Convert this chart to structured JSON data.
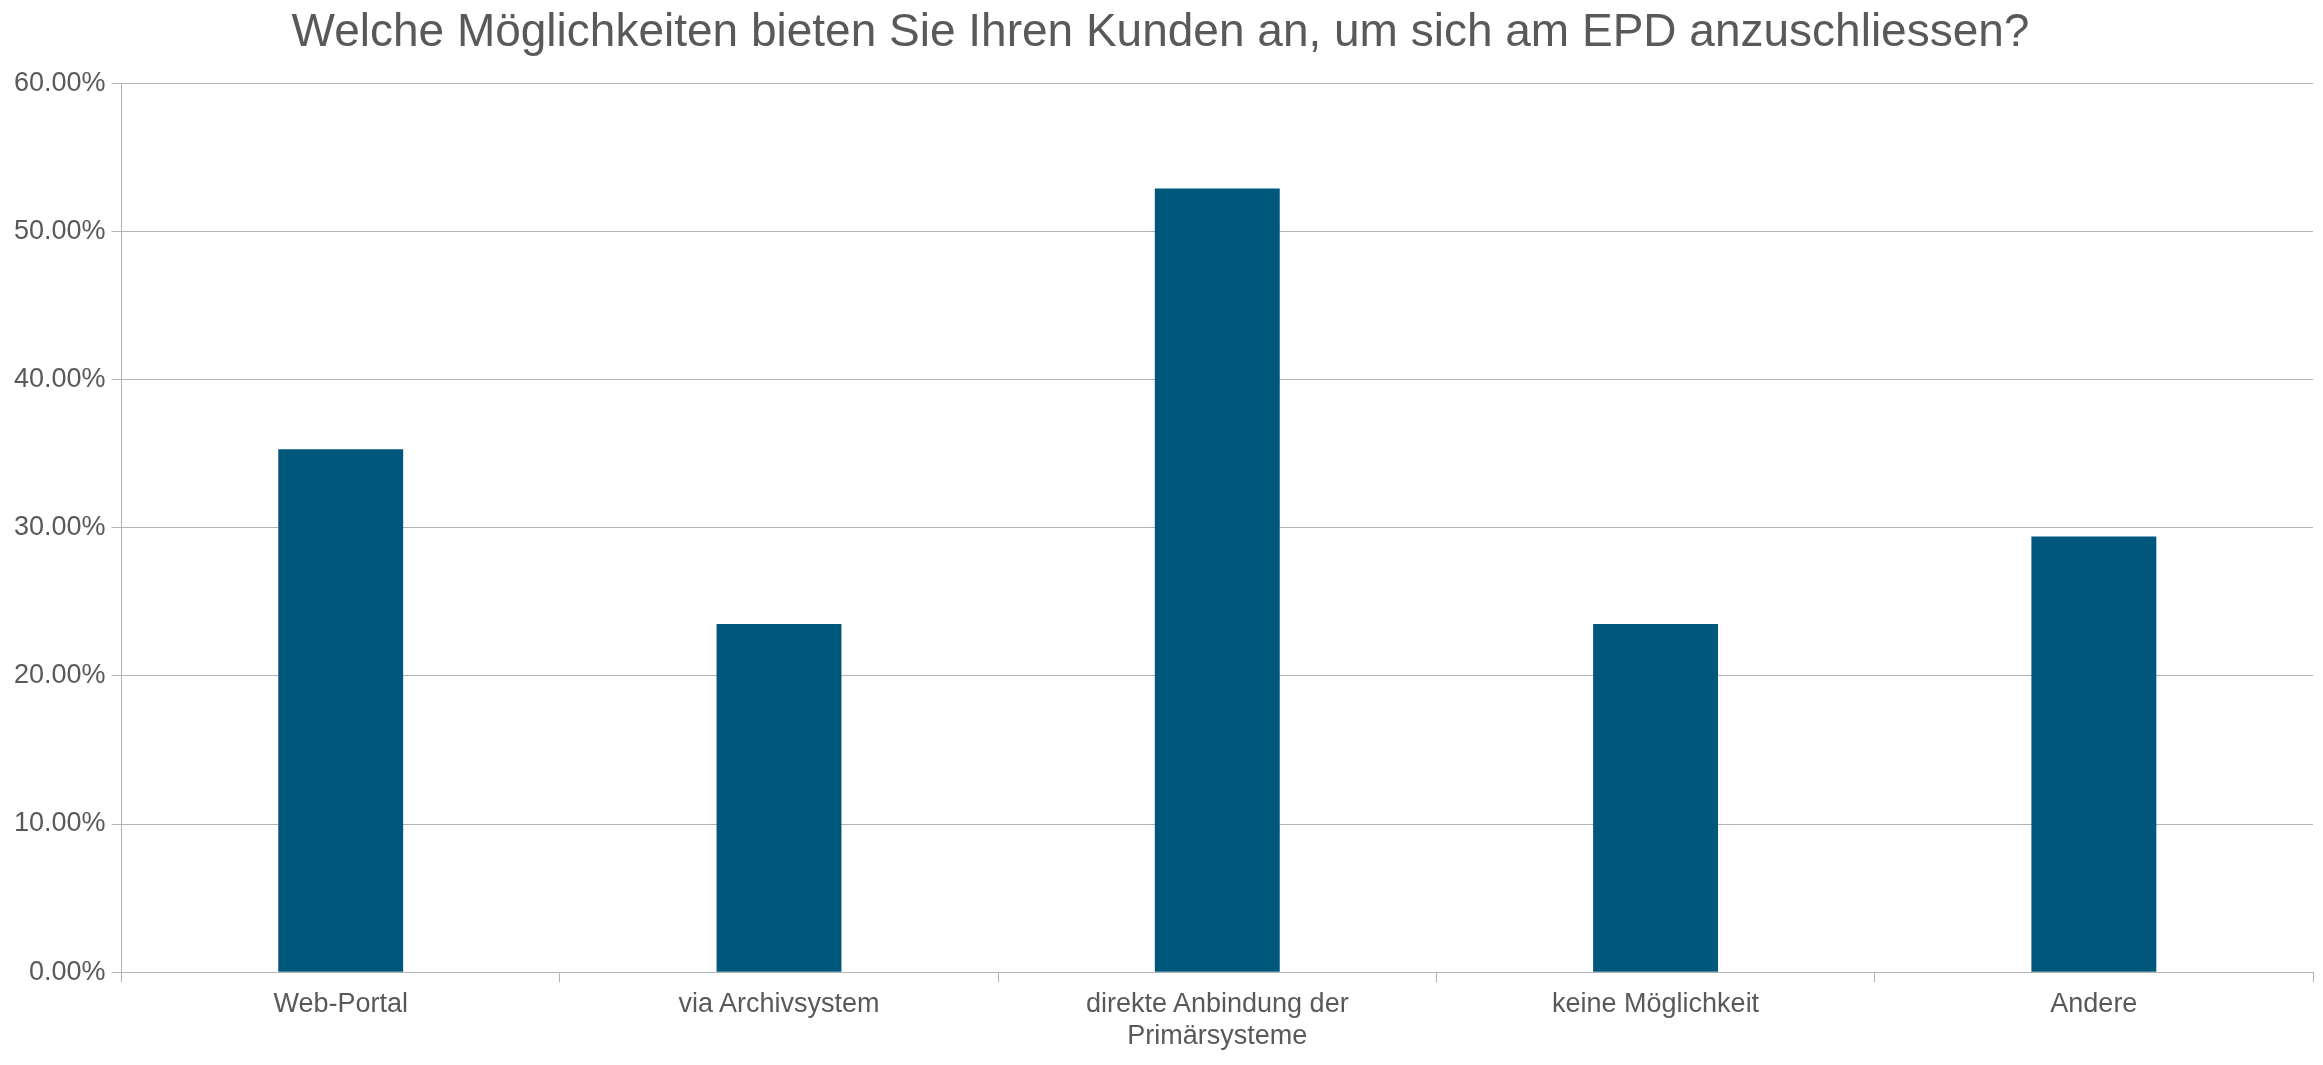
{
  "chart_data": {
    "type": "bar",
    "title": "Welche Möglichkeiten bieten Sie Ihren Kunden an, um sich am EPD anzuschliessen?",
    "categories": [
      "Web-Portal",
      "via Archivsystem",
      "direkte Anbindung der Primärsysteme",
      "keine Möglichkeit",
      "Andere"
    ],
    "values": [
      35.3,
      23.5,
      52.9,
      23.5,
      29.4
    ],
    "color": "#00577c",
    "ylim": [
      0,
      60
    ],
    "yticks": [
      {
        "value": 0,
        "label": "0.00%"
      },
      {
        "value": 10,
        "label": "10.00%"
      },
      {
        "value": 20,
        "label": "20.00%"
      },
      {
        "value": 30,
        "label": "30.00%"
      },
      {
        "value": 40,
        "label": "40.00%"
      },
      {
        "value": 50,
        "label": "50.00%"
      },
      {
        "value": 60,
        "label": "60.00%"
      }
    ],
    "grid": "y"
  }
}
